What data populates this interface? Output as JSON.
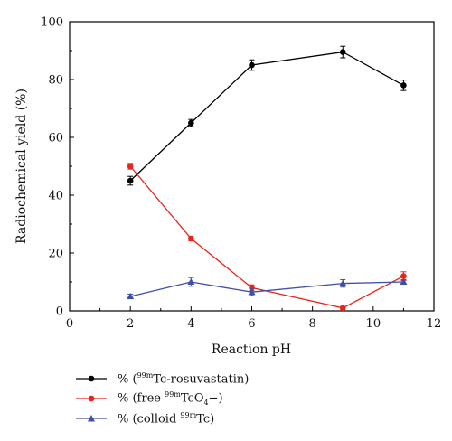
{
  "chart_data": {
    "type": "line",
    "xlabel": "Reaction pH",
    "ylabel": "Radiochemical yield (%)",
    "xlim": [
      0,
      12
    ],
    "ylim": [
      0,
      100
    ],
    "xticks": [
      0,
      2,
      4,
      6,
      8,
      10,
      12
    ],
    "yticks": [
      0,
      20,
      40,
      60,
      80,
      100
    ],
    "grid": false,
    "legend_position": "bottom-left",
    "series": [
      {
        "name": "% (99mTc-rosuvastatin)",
        "legend_prefix": "% (",
        "legend_sup": "99m",
        "legend_main": "Tc-rosuvastatin)",
        "color": "#000000",
        "marker": "circle",
        "x": [
          2,
          4,
          6,
          9,
          11
        ],
        "y": [
          45,
          65,
          85,
          89.5,
          78
        ],
        "err": [
          1.5,
          1.2,
          1.8,
          2,
          1.8
        ]
      },
      {
        "name": "% (free 99mTcO4−)",
        "legend_prefix": "% (free ",
        "legend_sup": "99m",
        "legend_main": "TcO",
        "legend_sub": "4",
        "legend_suffix": "−)",
        "color": "#e8251c",
        "marker": "circle",
        "x": [
          2,
          4,
          6,
          9,
          11
        ],
        "y": [
          50,
          25,
          8,
          1,
          12
        ],
        "err": [
          1,
          0.8,
          1,
          0.5,
          1.5
        ]
      },
      {
        "name": "% (colloid 99mTc)",
        "legend_prefix": "% (colloid ",
        "legend_sup": "99m",
        "legend_main": "Tc)",
        "color": "#3f4fa8",
        "marker": "triangle",
        "x": [
          2,
          4,
          6,
          9,
          11
        ],
        "y": [
          5,
          10,
          6.5,
          9.5,
          10
        ],
        "err": [
          0.8,
          1.5,
          1.2,
          1.3,
          0.8
        ]
      }
    ]
  }
}
